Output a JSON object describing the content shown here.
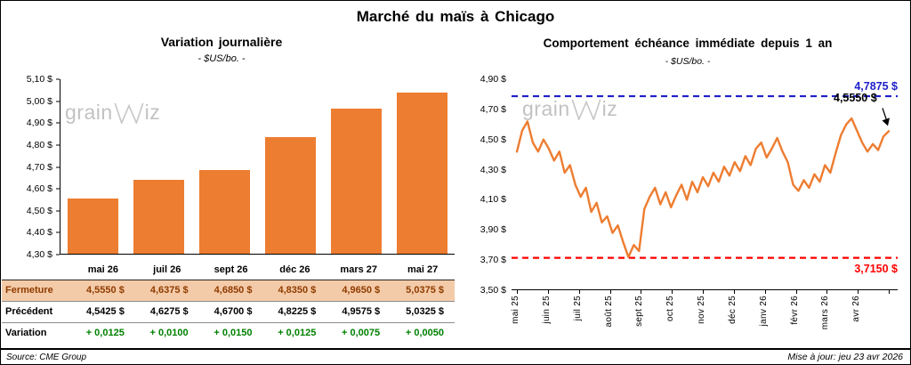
{
  "page": {
    "title": "Marché du maïs à Chicago"
  },
  "left_chart": {
    "title": "Variation journalière",
    "subtitle": "- $US/bo. -"
  },
  "right_chart": {
    "title": "Comportement échéance immédiate depuis 1 an",
    "subtitle": "- $US/bo. -",
    "resistance_label": "4,7875 $",
    "support_label": "3,7150 $",
    "last_label": "4,5550 $"
  },
  "watermark": {
    "prefix": "grain",
    "suffix": "iz"
  },
  "table": {
    "rows": [
      {
        "label": "Fermeture",
        "style": "close",
        "values": [
          "4,5550 $",
          "4,6375 $",
          "4,6850 $",
          "4,8350 $",
          "4,9650 $",
          "5,0375 $"
        ]
      },
      {
        "label": "Précédent",
        "style": "previous",
        "values": [
          "4,5425 $",
          "4,6275 $",
          "4,6700 $",
          "4,8225 $",
          "4,9575 $",
          "5,0325 $"
        ]
      },
      {
        "label": "Variation",
        "style": "variation",
        "values": [
          "+ 0,0125",
          "+ 0,0100",
          "+ 0,0150",
          "+ 0,0125",
          "+ 0,0075",
          "+ 0,0050"
        ]
      }
    ]
  },
  "footer": {
    "source": "Source: CME Group",
    "updated": "Mise à jour: jeu 23 avr 2026"
  },
  "colors": {
    "orange": "#ED7D31",
    "close_bg": "#F4CBA8",
    "close_text": "#8F3B00",
    "green": "#008000",
    "blue": "#1F1FC8",
    "red": "#FF0000"
  },
  "chart_data": [
    {
      "type": "bar",
      "title": "Variation journalière",
      "subtitle": "- $US/bo. -",
      "categories": [
        "mai 26",
        "juil 26",
        "sept 26",
        "déc 26",
        "mars 27",
        "mai 27"
      ],
      "values": [
        4.555,
        4.6375,
        4.685,
        4.835,
        4.965,
        5.0375
      ],
      "ylim": [
        4.3,
        5.1
      ],
      "ytick_labels": [
        "4,30 $",
        "4,40 $",
        "4,50 $",
        "4,60 $",
        "4,70 $",
        "4,80 $",
        "4,90 $",
        "5,00 $",
        "5,10 $"
      ],
      "xlabel": "",
      "ylabel": "$US/bo.",
      "grid": false,
      "bar_color": "#ED7D31"
    },
    {
      "type": "line",
      "title": "Comportement échéance immédiate depuis 1 an",
      "subtitle": "- $US/bo. -",
      "x_labels": [
        "mai 25",
        "juin 25",
        "juil 25",
        "août 25",
        "sept 25",
        "oct 25",
        "nov 25",
        "déc 25",
        "janv 26",
        "févr 26",
        "mars 26",
        "avr 26"
      ],
      "values": [
        4.42,
        4.56,
        4.62,
        4.48,
        4.42,
        4.5,
        4.44,
        4.36,
        4.42,
        4.28,
        4.33,
        4.2,
        4.12,
        4.18,
        4.02,
        4.08,
        3.95,
        3.99,
        3.88,
        3.93,
        3.82,
        3.72,
        3.8,
        3.76,
        4.04,
        4.12,
        4.18,
        4.07,
        4.15,
        4.05,
        4.13,
        4.2,
        4.1,
        4.22,
        4.15,
        4.25,
        4.19,
        4.28,
        4.22,
        4.32,
        4.26,
        4.35,
        4.29,
        4.39,
        4.33,
        4.44,
        4.48,
        4.38,
        4.44,
        4.51,
        4.42,
        4.35,
        4.2,
        4.16,
        4.23,
        4.18,
        4.27,
        4.22,
        4.33,
        4.28,
        4.41,
        4.53,
        4.6,
        4.64,
        4.56,
        4.48,
        4.42,
        4.47,
        4.43,
        4.52,
        4.555
      ],
      "ylim": [
        3.5,
        4.9
      ],
      "ytick_labels": [
        "3,50 $",
        "3,70 $",
        "3,90 $",
        "4,10 $",
        "4,30 $",
        "4,50 $",
        "4,70 $",
        "4,90 $"
      ],
      "resistance": 4.7875,
      "support": 3.715,
      "last_value": 4.555,
      "xlabel": "",
      "ylabel": "$US/bo.",
      "grid": false,
      "line_color": "#ED7D31"
    }
  ]
}
